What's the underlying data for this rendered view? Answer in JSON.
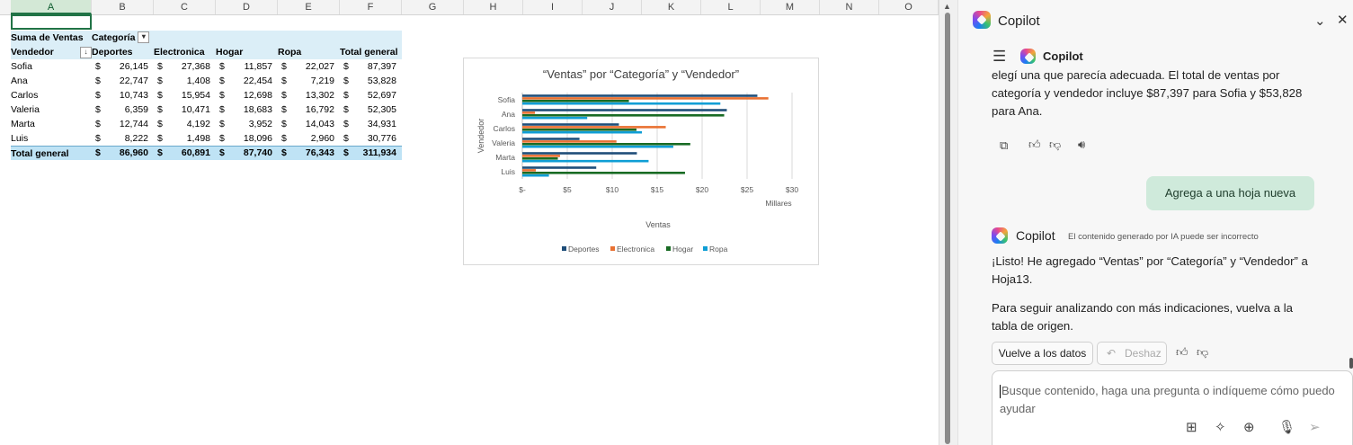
{
  "sheet": {
    "columns": [
      "A",
      "B",
      "C",
      "D",
      "E",
      "F",
      "G",
      "H",
      "I",
      "J",
      "K",
      "L",
      "M",
      "N",
      "O"
    ],
    "selected_column": "A",
    "pivot": {
      "corner_label": "Suma de Ventas",
      "category_label": "Categoría",
      "row_label": "Vendedor",
      "col_headers": [
        "Deportes",
        "Electronica",
        "Hogar",
        "Ropa",
        "Total general"
      ],
      "currency": "$",
      "rows": [
        {
          "name": "Sofia",
          "values": [
            "26,145",
            "27,368",
            "11,857",
            "22,027",
            "87,397"
          ]
        },
        {
          "name": "Ana",
          "values": [
            "22,747",
            "1,408",
            "22,454",
            "7,219",
            "53,828"
          ]
        },
        {
          "name": "Carlos",
          "values": [
            "10,743",
            "15,954",
            "12,698",
            "13,302",
            "52,697"
          ]
        },
        {
          "name": "Valeria",
          "values": [
            "6,359",
            "10,471",
            "18,683",
            "16,792",
            "52,305"
          ]
        },
        {
          "name": "Marta",
          "values": [
            "12,744",
            "4,192",
            "3,952",
            "14,043",
            "34,931"
          ]
        },
        {
          "name": "Luis",
          "values": [
            "8,222",
            "1,498",
            "18,096",
            "2,960",
            "30,776"
          ]
        }
      ],
      "total": {
        "name": "Total general",
        "values": [
          "86,960",
          "60,891",
          "87,740",
          "76,343",
          "311,934"
        ]
      }
    }
  },
  "chart_data": {
    "type": "bar",
    "orientation": "horizontal",
    "title": "“Ventas” por “Categoría” y “Vendedor”",
    "xlabel": "Ventas",
    "ylabel": "Vendedor",
    "x_unit_label": "Millares",
    "categories": [
      "Sofia",
      "Ana",
      "Carlos",
      "Valeria",
      "Marta",
      "Luis"
    ],
    "series": [
      {
        "name": "Deportes",
        "color": "#1f4e79",
        "values": [
          26.145,
          22.747,
          10.743,
          6.359,
          12.744,
          8.222
        ]
      },
      {
        "name": "Electronica",
        "color": "#e97132",
        "values": [
          27.368,
          1.408,
          15.954,
          10.471,
          4.192,
          1.498
        ]
      },
      {
        "name": "Hogar",
        "color": "#196b24",
        "values": [
          11.857,
          22.454,
          12.698,
          18.683,
          3.952,
          18.096
        ]
      },
      {
        "name": "Ropa",
        "color": "#0f9ed5",
        "values": [
          22.027,
          7.219,
          13.302,
          16.792,
          14.043,
          2.96
        ]
      }
    ],
    "xlim": [
      0,
      30
    ],
    "x_ticks": [
      "$-",
      "$5",
      "$10",
      "$15",
      "$20",
      "$25",
      "$30"
    ],
    "grid": true,
    "legend_position": "bottom"
  },
  "copilot": {
    "title": "Copilot",
    "inner_title": "Copilot",
    "message1": "elegí una que parecía adecuada. El total de ventas por categoría y vendedor incluye $87,397 para Sofia y $53,828 para Ana.",
    "user_message": "Agrega a una hoja nueva",
    "assistant_name": "Copilot",
    "disclaimer": "El contenido generado por IA puede ser incorrecto",
    "message2": "¡Listo! He agregado “Ventas” por “Categoría” y “Vendedor” a Hoja13.",
    "message3": "Para seguir analizando con más indicaciones, vuelva a la tabla de origen.",
    "back_button": "Vuelve a los datos",
    "undo_button": "Deshaz",
    "input_placeholder": "Busque contenido, haga una pregunta o indíqueme cómo puedo ayudar"
  }
}
